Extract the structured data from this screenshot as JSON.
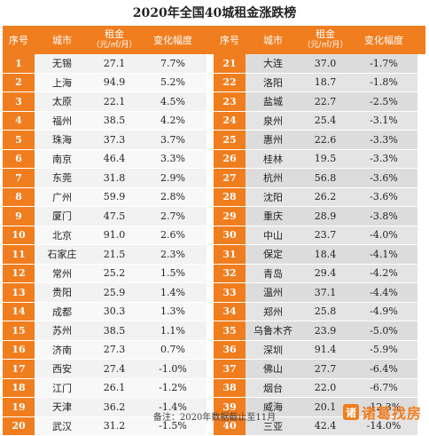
{
  "title": "2020年全国40城租金涨跌榜",
  "headers": {
    "rank": "序号",
    "city": "城市",
    "rent_line1": "租金",
    "rent_line2": "（元/㎡/月）",
    "change": "变化幅度"
  },
  "rows_left": [
    {
      "rank": "1",
      "city": "无锡",
      "rent": "27.1",
      "change": "7.7%"
    },
    {
      "rank": "2",
      "city": "上海",
      "rent": "94.9",
      "change": "5.2%"
    },
    {
      "rank": "3",
      "city": "太原",
      "rent": "22.1",
      "change": "4.5%"
    },
    {
      "rank": "4",
      "city": "福州",
      "rent": "38.5",
      "change": "4.2%"
    },
    {
      "rank": "5",
      "city": "珠海",
      "rent": "37.3",
      "change": "3.7%"
    },
    {
      "rank": "6",
      "city": "南京",
      "rent": "46.4",
      "change": "3.3%"
    },
    {
      "rank": "7",
      "city": "东莞",
      "rent": "31.8",
      "change": "2.9%"
    },
    {
      "rank": "8",
      "city": "广州",
      "rent": "59.9",
      "change": "2.8%"
    },
    {
      "rank": "9",
      "city": "厦门",
      "rent": "47.5",
      "change": "2.7%"
    },
    {
      "rank": "10",
      "city": "北京",
      "rent": "91.0",
      "change": "2.6%"
    },
    {
      "rank": "11",
      "city": "石家庄",
      "rent": "21.5",
      "change": "2.3%"
    },
    {
      "rank": "12",
      "city": "常州",
      "rent": "25.2",
      "change": "1.5%"
    },
    {
      "rank": "13",
      "city": "贵阳",
      "rent": "25.9",
      "change": "1.4%"
    },
    {
      "rank": "14",
      "city": "成都",
      "rent": "30.3",
      "change": "1.3%"
    },
    {
      "rank": "15",
      "city": "苏州",
      "rent": "38.5",
      "change": "1.1%"
    },
    {
      "rank": "16",
      "city": "济南",
      "rent": "27.3",
      "change": "0.7%"
    },
    {
      "rank": "17",
      "city": "西安",
      "rent": "27.4",
      "change": "-1.0%"
    },
    {
      "rank": "18",
      "city": "江门",
      "rent": "26.1",
      "change": "-1.2%"
    },
    {
      "rank": "19",
      "city": "天津",
      "rent": "36.2",
      "change": "-1.4%"
    },
    {
      "rank": "20",
      "city": "武汉",
      "rent": "31.2",
      "change": "-1.5%"
    }
  ],
  "rows_right": [
    {
      "rank": "21",
      "city": "大连",
      "rent": "37.0",
      "change": "-1.7%"
    },
    {
      "rank": "22",
      "city": "洛阳",
      "rent": "18.7",
      "change": "-1.8%"
    },
    {
      "rank": "23",
      "city": "盐城",
      "rent": "22.7",
      "change": "-2.5%"
    },
    {
      "rank": "24",
      "city": "泉州",
      "rent": "25.4",
      "change": "-3.1%"
    },
    {
      "rank": "25",
      "city": "惠州",
      "rent": "22.6",
      "change": "-3.3%"
    },
    {
      "rank": "26",
      "city": "桂林",
      "rent": "19.5",
      "change": "-3.3%"
    },
    {
      "rank": "27",
      "city": "杭州",
      "rent": "56.8",
      "change": "-3.6%"
    },
    {
      "rank": "28",
      "city": "沈阳",
      "rent": "26.2",
      "change": "-3.6%"
    },
    {
      "rank": "29",
      "city": "重庆",
      "rent": "28.9",
      "change": "-3.8%"
    },
    {
      "rank": "30",
      "city": "中山",
      "rent": "23.7",
      "change": "-4.0%"
    },
    {
      "rank": "31",
      "city": "保定",
      "rent": "18.4",
      "change": "-4.1%"
    },
    {
      "rank": "32",
      "city": "青岛",
      "rent": "29.4",
      "change": "-4.2%"
    },
    {
      "rank": "33",
      "city": "温州",
      "rent": "37.1",
      "change": "-4.4%"
    },
    {
      "rank": "34",
      "city": "郑州",
      "rent": "25.8",
      "change": "-4.9%"
    },
    {
      "rank": "35",
      "city": "乌鲁木齐",
      "rent": "23.9",
      "change": "-5.0%"
    },
    {
      "rank": "36",
      "city": "深圳",
      "rent": "91.4",
      "change": "-5.9%"
    },
    {
      "rank": "37",
      "city": "佛山",
      "rent": "27.7",
      "change": "-6.4%"
    },
    {
      "rank": "38",
      "city": "烟台",
      "rent": "22.0",
      "change": "-6.7%"
    },
    {
      "rank": "39",
      "city": "威海",
      "rent": "20.1",
      "change": "-12.3%"
    },
    {
      "rank": "40",
      "city": "三亚",
      "rent": "42.4",
      "change": "-14.0%"
    }
  ],
  "footer": "备注：2020年数据截止至11月",
  "logo": {
    "mark": "诸",
    "text": "诸葛找房"
  },
  "colors": {
    "accent": "#f07d1e",
    "left_bg": "#f2f2f2",
    "right_bg": "#dcdcdc"
  }
}
